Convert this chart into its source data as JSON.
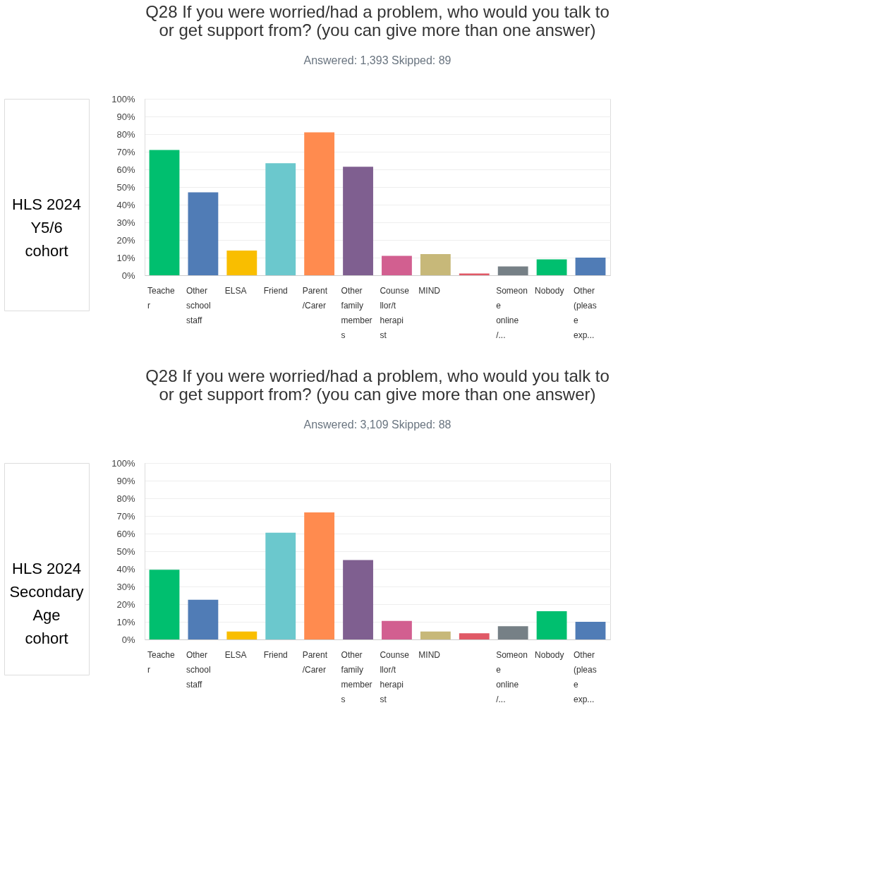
{
  "chart_data": [
    {
      "type": "bar",
      "title": "Q28 If you were worried/had a problem, who would you talk to or get support from? (you can give more than one answer)",
      "subtitle": "Answered: 1,393    Skipped: 89",
      "annotations": [
        "HLS 2024 Y5/6 cohort"
      ],
      "categories": [
        "Teacher",
        "Other school staff",
        "ELSA",
        "Friend",
        "Parent/Carer",
        "Other family members",
        "Counsellor/therapist",
        "MIND",
        null,
        "Someone online /...",
        "Nobody",
        "Other (please exp..."
      ],
      "values": [
        71,
        47,
        14,
        63.5,
        81,
        61.5,
        11,
        12,
        1,
        5,
        9,
        10
      ],
      "colors": [
        "#00bf6f",
        "#507cb6",
        "#f9be00",
        "#6bc8cd",
        "#ff8b4f",
        "#7f5f90",
        "#d25f90",
        "#c7b879",
        "#e05966",
        "#768086",
        "#00bf6f",
        "#507cb6"
      ],
      "ylim": [
        0,
        100
      ],
      "yticks": [
        {
          "value": 0,
          "label": "0%"
        },
        {
          "value": 10,
          "label": "10%"
        },
        {
          "value": 20,
          "label": "20%"
        },
        {
          "value": 30,
          "label": "30%"
        },
        {
          "value": 40,
          "label": "40%"
        },
        {
          "value": 50,
          "label": "50%"
        },
        {
          "value": 60,
          "label": "60%"
        },
        {
          "value": 70,
          "label": "70%"
        },
        {
          "value": 80,
          "label": "80%"
        },
        {
          "value": 90,
          "label": "90%"
        },
        {
          "value": 100,
          "label": "100%"
        }
      ],
      "grid": "y"
    },
    {
      "type": "bar",
      "title": "Q28 If you were worried/had a problem, who would you talk to or get support from? (you can give more than one answer)",
      "subtitle": "Answered: 3,109    Skipped: 88",
      "annotations": [
        "HLS 2024 Secondary Age cohort"
      ],
      "categories": [
        "Teacher",
        "Other school staff",
        "ELSA",
        "Friend",
        "Parent/Carer",
        "Other family members",
        "Counsellor/therapist",
        "MIND",
        null,
        "Someone online /...",
        "Nobody",
        "Other (please exp..."
      ],
      "values": [
        39.5,
        22.5,
        4.5,
        60.5,
        72,
        45,
        10.5,
        4.5,
        3.5,
        7.5,
        16,
        10
      ],
      "colors": [
        "#00bf6f",
        "#507cb6",
        "#f9be00",
        "#6bc8cd",
        "#ff8b4f",
        "#7f5f90",
        "#d25f90",
        "#c7b879",
        "#e05966",
        "#768086",
        "#00bf6f",
        "#507cb6"
      ],
      "ylim": [
        0,
        100
      ],
      "yticks": [
        {
          "value": 0,
          "label": "0%"
        },
        {
          "value": 10,
          "label": "10%"
        },
        {
          "value": 20,
          "label": "20%"
        },
        {
          "value": 30,
          "label": "30%"
        },
        {
          "value": 40,
          "label": "40%"
        },
        {
          "value": 50,
          "label": "50%"
        },
        {
          "value": 60,
          "label": "60%"
        },
        {
          "value": 70,
          "label": "70%"
        },
        {
          "value": 80,
          "label": "80%"
        },
        {
          "value": 90,
          "label": "90%"
        },
        {
          "value": 100,
          "label": "100%"
        }
      ],
      "grid": "y"
    }
  ]
}
